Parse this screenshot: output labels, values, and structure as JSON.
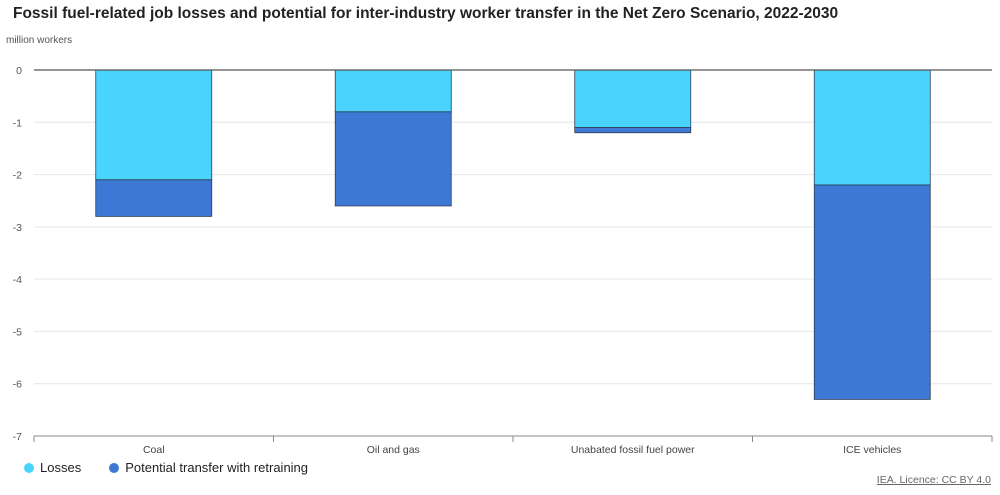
{
  "chart_data": {
    "type": "bar",
    "stacked": true,
    "title": "Fossil fuel-related job losses and potential for inter-industry worker transfer in the Net Zero Scenario, 2022-2030",
    "ylabel": "million workers",
    "xlabel": "",
    "ylim": [
      -7,
      0
    ],
    "yticks": [
      0,
      -1,
      -2,
      -3,
      -4,
      -5,
      -6,
      -7
    ],
    "grid": true,
    "legend_position": "bottom-left",
    "categories": [
      "Coal",
      "Oil and gas",
      "Unabated fossil fuel power",
      "ICE vehicles"
    ],
    "series": [
      {
        "name": "Losses",
        "color": "#4ad3fc",
        "values": [
          -2.1,
          -0.8,
          -1.1,
          -2.2
        ]
      },
      {
        "name": "Potential transfer with retraining",
        "color": "#3c78d4",
        "values": [
          -0.7,
          -1.8,
          -0.1,
          -4.1
        ]
      }
    ]
  },
  "source": "IEA. Licence: CC BY 4.0"
}
